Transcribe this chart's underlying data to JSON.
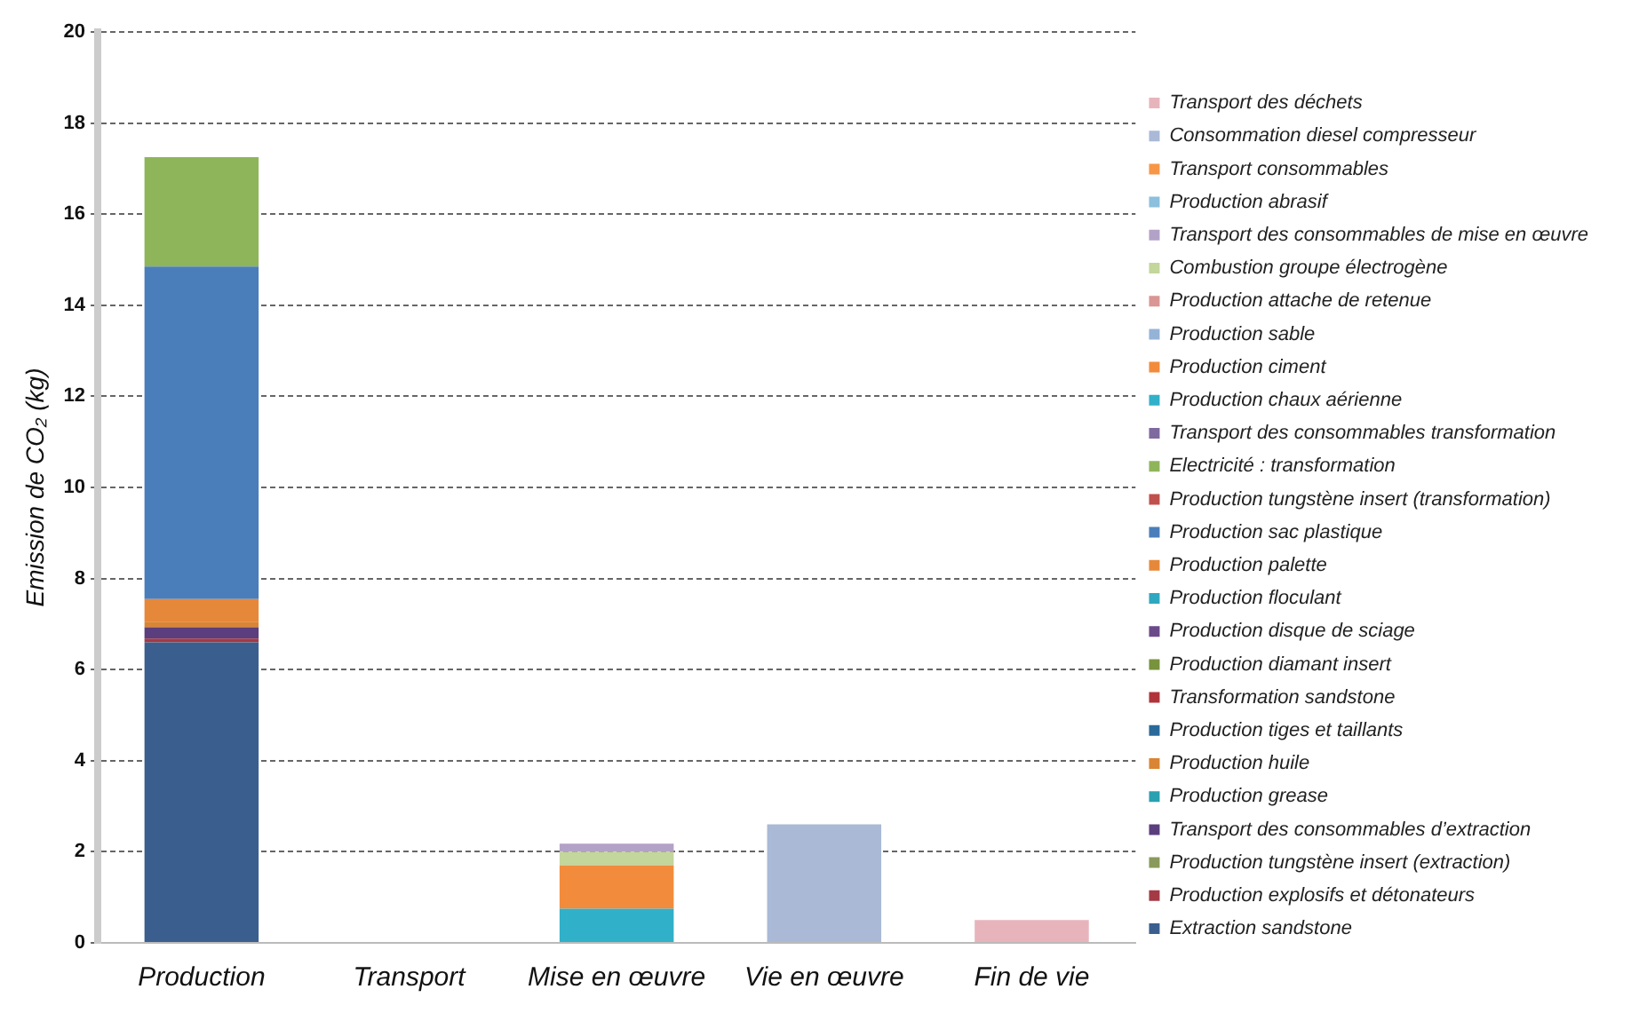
{
  "chart_data": {
    "type": "bar",
    "stacked": true,
    "ylabel": "Emission de CO₂ (kg)",
    "categories": [
      "Production",
      "Transport",
      "Mise en œuvre",
      "Vie en œuvre",
      "Fin de vie"
    ],
    "ylim": [
      0,
      20
    ],
    "yticks": [
      0,
      2,
      4,
      6,
      8,
      10,
      12,
      14,
      16,
      18,
      20
    ],
    "grid": "y",
    "legend": "right",
    "series": [
      {
        "name": "Extraction sandstone",
        "color": "#3a5f8f",
        "values": [
          6.6,
          0,
          0,
          0,
          0
        ]
      },
      {
        "name": "Production explosifs et détonateurs",
        "color": "#a33a45",
        "values": [
          0.08,
          0,
          0,
          0,
          0
        ]
      },
      {
        "name": "Production tungstène insert (extraction)",
        "color": "#8a9a5b",
        "values": [
          0,
          0,
          0,
          0,
          0
        ]
      },
      {
        "name": "Transport des consommables d’extraction",
        "color": "#5b3e7e",
        "values": [
          0.25,
          0,
          0,
          0,
          0
        ]
      },
      {
        "name": "Production grease",
        "color": "#2aa0b0",
        "values": [
          0,
          0,
          0,
          0,
          0
        ]
      },
      {
        "name": "Production huile",
        "color": "#d98533",
        "values": [
          0.12,
          0,
          0,
          0,
          0
        ]
      },
      {
        "name": "Production tiges et taillants",
        "color": "#2a6a9a",
        "values": [
          0,
          0,
          0,
          0,
          0
        ]
      },
      {
        "name": "Transformation sandstone",
        "color": "#b0343a",
        "values": [
          0,
          0,
          0,
          0,
          0
        ]
      },
      {
        "name": "Production diamant insert",
        "color": "#77933c",
        "values": [
          0,
          0,
          0,
          0,
          0
        ]
      },
      {
        "name": "Production disque de sciage",
        "color": "#6b4a8a",
        "values": [
          0,
          0,
          0,
          0,
          0
        ]
      },
      {
        "name": "Production floculant",
        "color": "#2ea8c0",
        "values": [
          0,
          0,
          0,
          0,
          0
        ]
      },
      {
        "name": "Production palette",
        "color": "#e6883a",
        "values": [
          0.5,
          0,
          0,
          0,
          0
        ]
      },
      {
        "name": "Production sac plastique",
        "color": "#4a7ebb",
        "values": [
          7.3,
          0,
          0,
          0,
          0
        ]
      },
      {
        "name": "Production tungstène insert (transformation)",
        "color": "#c0504d",
        "values": [
          0,
          0,
          0,
          0,
          0
        ]
      },
      {
        "name": "Electricité : transformation",
        "color": "#8fb55b",
        "values": [
          2.4,
          0,
          0,
          0,
          0
        ]
      },
      {
        "name": "Transport des consommables transformation",
        "color": "#7f6aa0",
        "values": [
          0,
          0,
          0,
          0,
          0
        ]
      },
      {
        "name": "Production chaux aérienne",
        "color": "#31b0c9",
        "values": [
          0,
          0,
          0.75,
          0,
          0
        ]
      },
      {
        "name": "Production ciment",
        "color": "#f28c3c",
        "values": [
          0,
          0,
          0.95,
          0,
          0
        ]
      },
      {
        "name": "Production sable",
        "color": "#95b3d7",
        "values": [
          0,
          0,
          0,
          0,
          0
        ]
      },
      {
        "name": "Production attache de retenue",
        "color": "#d99694",
        "values": [
          0,
          0,
          0,
          0,
          0
        ]
      },
      {
        "name": "Combustion groupe électrogène",
        "color": "#c3d69b",
        "values": [
          0,
          0,
          0.3,
          0,
          0
        ]
      },
      {
        "name": "Transport des consommables de mise en œuvre",
        "color": "#b3a2c7",
        "values": [
          0,
          0,
          0.18,
          0,
          0
        ]
      },
      {
        "name": "Production abrasif",
        "color": "#8cc0dc",
        "values": [
          0,
          0,
          0,
          0,
          0
        ]
      },
      {
        "name": "Transport consommables",
        "color": "#f79646",
        "values": [
          0,
          0,
          0,
          0,
          0
        ]
      },
      {
        "name": "Consommation diesel compresseur",
        "color": "#a9b9d6",
        "values": [
          0,
          0,
          0,
          2.6,
          0
        ]
      },
      {
        "name": "Transport des déchets",
        "color": "#e8b4bc",
        "values": [
          0,
          0,
          0,
          0,
          0.5
        ]
      }
    ]
  }
}
